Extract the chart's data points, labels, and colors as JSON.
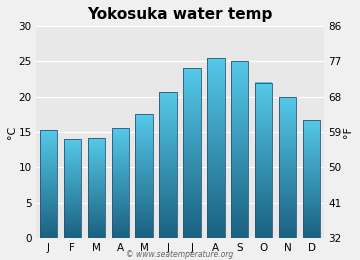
{
  "title": "Yokosuka water temp",
  "months": [
    "J",
    "F",
    "M",
    "A",
    "M",
    "J",
    "J",
    "A",
    "S",
    "O",
    "N",
    "D"
  ],
  "values_c": [
    15.3,
    14.0,
    14.1,
    15.6,
    17.5,
    20.7,
    24.0,
    25.5,
    25.0,
    22.0,
    20.0,
    16.7
  ],
  "ylim_c": [
    0,
    30
  ],
  "yticks_c": [
    0,
    5,
    10,
    15,
    20,
    25,
    30
  ],
  "yticks_f": [
    32,
    41,
    50,
    59,
    68,
    77,
    86
  ],
  "ylabel_left": "°C",
  "ylabel_right": "°F",
  "bar_color_top": "#55c8e8",
  "bar_color_bottom": "#1a6080",
  "bar_edge_color": "#2a5575",
  "background_color": "#f0f0f0",
  "plot_bg_color": "#e8e8e8",
  "grid_color": "#ffffff",
  "watermark": "© www.seatemperature.org",
  "title_fontsize": 11,
  "tick_fontsize": 7.5,
  "label_fontsize": 8
}
